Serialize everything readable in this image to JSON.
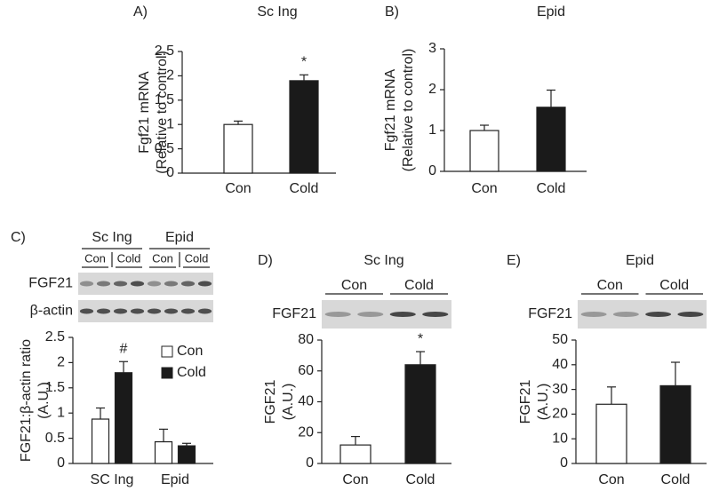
{
  "chart_data": [
    {
      "type": "bar",
      "label": "A)",
      "title": "Sc Ing",
      "y_label": [
        "Fgf21 mRNA",
        "(Relative to control)"
      ],
      "categories": [
        "Con",
        "Cold"
      ],
      "series": [
        {
          "color": "#ffffff",
          "values": [
            1.0,
            1.9
          ],
          "errors": [
            0.07,
            0.12
          ]
        }
      ],
      "bar_colors": [
        "#ffffff",
        "#1a1a1a"
      ],
      "ylim": [
        0,
        2.5
      ],
      "yticks": [
        0,
        0.5,
        1,
        1.5,
        2,
        2.5
      ],
      "annotations": [
        {
          "text": "*",
          "category": "Cold"
        }
      ]
    },
    {
      "type": "bar",
      "label": "B)",
      "title": "Epid",
      "y_label": [
        "Fgf21 mRNA",
        "(Relative to control)"
      ],
      "categories": [
        "Con",
        "Cold"
      ],
      "series": [
        {
          "color": "#ffffff",
          "values": [
            1.0,
            1.57
          ],
          "errors": [
            0.13,
            0.42
          ]
        }
      ],
      "bar_colors": [
        "#ffffff",
        "#1a1a1a"
      ],
      "ylim": [
        0,
        3
      ],
      "yticks": [
        0,
        1,
        2,
        3
      ]
    },
    {
      "type": "bar",
      "label": "C)",
      "y_label": [
        "FGF21:β-actin ratio",
        "(A.U.)"
      ],
      "categories": [
        "SC Ing",
        "Epid"
      ],
      "series": [
        {
          "name": "Con",
          "color": "#ffffff",
          "values": [
            0.88,
            0.43
          ],
          "errors": [
            0.22,
            0.25
          ]
        },
        {
          "name": "Cold",
          "color": "#1a1a1a",
          "values": [
            1.8,
            0.35
          ],
          "errors": [
            0.22,
            0.05
          ]
        }
      ],
      "ylim": [
        0,
        2.5
      ],
      "yticks": [
        0,
        0.5,
        1,
        1.5,
        2,
        2.5
      ],
      "annotations": [
        {
          "text": "#",
          "category": "SC Ing",
          "series": "Cold"
        }
      ],
      "blot": {
        "groups": [
          {
            "name": "Sc Ing",
            "lanes": [
              "Con",
              "Cold"
            ]
          },
          {
            "name": "Epid",
            "lanes": [
              "Con",
              "Cold"
            ]
          }
        ],
        "rows": [
          "FGF21",
          "β-actin"
        ]
      }
    },
    {
      "type": "bar",
      "label": "D)",
      "title": "Sc Ing",
      "y_label": [
        "FGF21",
        "(A.U.)"
      ],
      "categories": [
        "Con",
        "Cold"
      ],
      "series": [
        {
          "color": "#ffffff",
          "values": [
            12,
            64
          ],
          "errors": [
            5.5,
            8.5
          ]
        }
      ],
      "bar_colors": [
        "#ffffff",
        "#1a1a1a"
      ],
      "ylim": [
        0,
        80
      ],
      "yticks": [
        0,
        20,
        40,
        60,
        80
      ],
      "annotations": [
        {
          "text": "*",
          "category": "Cold"
        }
      ],
      "blot": {
        "groups": [
          {
            "lanes": [
              "Con",
              "Cold"
            ]
          }
        ],
        "rows": [
          "FGF21"
        ]
      }
    },
    {
      "type": "bar",
      "label": "E)",
      "title": "Epid",
      "y_label": [
        "FGF21",
        "(A.U.)"
      ],
      "categories": [
        "Con",
        "Cold"
      ],
      "series": [
        {
          "color": "#ffffff",
          "values": [
            24,
            31.5
          ],
          "errors": [
            7,
            9.5
          ]
        }
      ],
      "bar_colors": [
        "#ffffff",
        "#1a1a1a"
      ],
      "ylim": [
        0,
        50
      ],
      "yticks": [
        0,
        10,
        20,
        30,
        40,
        50
      ],
      "blot": {
        "groups": [
          {
            "lanes": [
              "Con",
              "Cold"
            ]
          }
        ],
        "rows": [
          "FGF21"
        ]
      }
    }
  ]
}
